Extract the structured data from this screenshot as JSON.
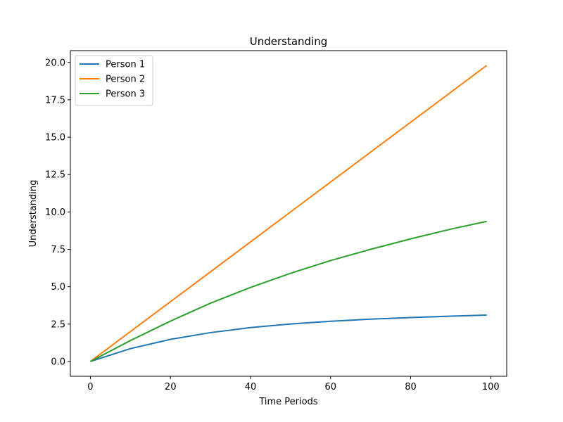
{
  "chart_data": {
    "type": "line",
    "title": "Understanding",
    "xlabel": "Time Periods",
    "ylabel": "Understanding",
    "xlim": [
      -5,
      104
    ],
    "ylim": [
      -0.99,
      20.79
    ],
    "x_ticks": [
      0,
      20,
      40,
      60,
      80,
      100
    ],
    "x_tick_labels": [
      "0",
      "20",
      "40",
      "60",
      "80",
      "100"
    ],
    "y_ticks": [
      0,
      2.5,
      5,
      7.5,
      10,
      12.5,
      15,
      17.5,
      20
    ],
    "y_tick_labels": [
      "0.0",
      "2.5",
      "5.0",
      "7.5",
      "10.0",
      "12.5",
      "15.0",
      "17.5",
      "20.0"
    ],
    "grid": false,
    "legend_position": "upper-left",
    "x": [
      0,
      10,
      20,
      30,
      40,
      50,
      60,
      70,
      80,
      90,
      99
    ],
    "series": [
      {
        "name": "Person 1",
        "color": "#1f77b4",
        "values": [
          0.0,
          0.86,
          1.48,
          1.93,
          2.27,
          2.51,
          2.69,
          2.83,
          2.94,
          3.03,
          3.1
        ]
      },
      {
        "name": "Person 2",
        "color": "#ff7f0e",
        "values": [
          0.0,
          2.0,
          4.0,
          6.0,
          8.0,
          10.0,
          12.0,
          14.0,
          16.0,
          18.0,
          19.8
        ]
      },
      {
        "name": "Person 3",
        "color": "#2ca02c",
        "values": [
          0.0,
          1.4,
          2.7,
          3.9,
          4.95,
          5.9,
          6.75,
          7.5,
          8.2,
          8.85,
          9.37
        ]
      }
    ]
  }
}
